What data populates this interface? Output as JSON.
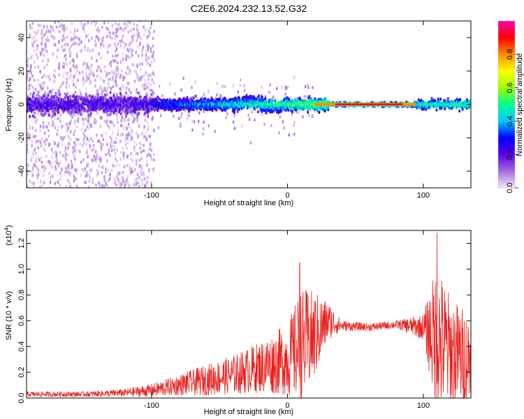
{
  "title": "C2E6.2024.232.13.52.G32",
  "chart_data": [
    {
      "type": "heatmap",
      "name": "spectrogram",
      "xlabel": "Height of straight line (km)",
      "ylabel": "Frequency (Hz)",
      "xlim": [
        -192,
        135
      ],
      "ylim": [
        -50,
        50
      ],
      "xticks": [
        -100,
        0,
        100
      ],
      "xtick_labels": [
        "-100",
        "0",
        "100"
      ],
      "yticks": [
        -40,
        -20,
        0,
        20,
        40
      ],
      "ytick_labels": [
        "-40",
        "-20",
        "0",
        "20",
        "40"
      ],
      "colorbar": {
        "label": "Normalized spectral amplitude",
        "range": [
          0,
          1
        ],
        "ticks": [
          0.0,
          0.2,
          0.4,
          0.6,
          0.8
        ],
        "tick_labels": [
          "0.0",
          "0.2",
          "0.4",
          "0.6",
          "0.8"
        ],
        "colors": [
          "#f2e6f8",
          "#a46ce0",
          "#5a00e8",
          "#0000ff",
          "#00c8ff",
          "#00ff90",
          "#9cff00",
          "#ffff00",
          "#ff8c00",
          "#ff0000",
          "#ff00b4"
        ]
      },
      "description_values": {
        "main_band_center_hz": 0,
        "band_halfwidth_hz": [
          8,
          4,
          2
        ],
        "max_amplitude_x_range_km": [
          35,
          85
        ]
      }
    },
    {
      "type": "line",
      "name": "snr",
      "xlabel": "Height of straight line (km)",
      "ylabel": "SNR (10 * v/v)",
      "scale_label": "(x10",
      "scale_exponent": "4",
      "scale_suffix": ")",
      "xlim": [
        -192,
        135
      ],
      "ylim": [
        0,
        1.3
      ],
      "xticks": [
        -100,
        0,
        100
      ],
      "xtick_labels": [
        "-100",
        "0",
        "100"
      ],
      "yticks": [
        0.0,
        0.2,
        0.4,
        0.6,
        0.8,
        1.0,
        1.2
      ],
      "ytick_labels": [
        "0.0",
        "0.2",
        "0.4",
        "0.6",
        "0.8",
        "1.0",
        "1.2"
      ],
      "series": [
        {
          "name": "SNR",
          "color": "#e8201e",
          "envelope_x": [
            -192,
            -150,
            -120,
            -100,
            -80,
            -60,
            -40,
            -20,
            0,
            10,
            20,
            30,
            40,
            60,
            80,
            100,
            110,
            120,
            135
          ],
          "envelope_mean": [
            0.03,
            0.03,
            0.04,
            0.06,
            0.1,
            0.14,
            0.18,
            0.24,
            0.3,
            0.4,
            0.48,
            0.6,
            0.56,
            0.55,
            0.57,
            0.55,
            0.45,
            0.35,
            0.3
          ],
          "envelope_spread": [
            0.02,
            0.02,
            0.03,
            0.05,
            0.08,
            0.12,
            0.15,
            0.2,
            0.28,
            0.45,
            0.35,
            0.15,
            0.04,
            0.03,
            0.03,
            0.1,
            0.6,
            0.45,
            0.35
          ],
          "peaks": [
            {
              "x": 9,
              "y": 1.05
            },
            {
              "x": 110,
              "y": 1.28
            }
          ]
        }
      ]
    }
  ]
}
